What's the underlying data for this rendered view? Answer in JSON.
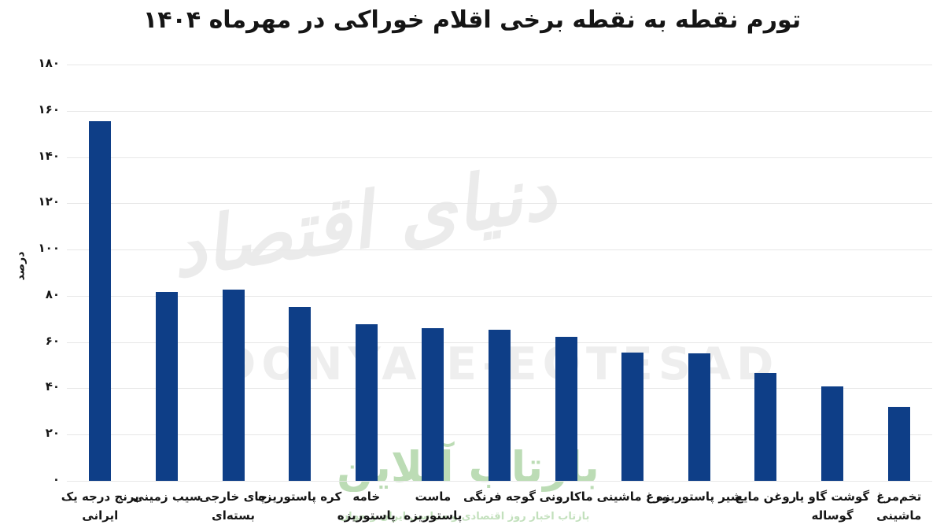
{
  "title": "تورم نقطه به نقطه برخی اقلام خوراکی در مهرماه ۱۴۰۴",
  "colors": {
    "bar": "#0e3e87",
    "gridline": "#e7e7e7",
    "title_text": "#151515",
    "watermark_gray": "#ececec",
    "watermark_green": "#b5d9ae"
  },
  "watermarks": {
    "center_logo_fa": "دنیای اقتصاد",
    "center_logo_en": "DONYA-E-EQTESAD",
    "bottom_logo_fa": "بازتاب آنلاین",
    "bottom_tagline_fa": "بازتاب اخبار روز اقتصادی و سیاسی ایران و جهان"
  },
  "chart_data": {
    "type": "bar",
    "title": "تورم نقطه به نقطه برخی اقلام خوراکی در مهرماه ۱۴۰۴",
    "xlabel": "",
    "ylabel": "درصد",
    "ylim": [
      0,
      180
    ],
    "ytick_step": 20,
    "ytick_labels": [
      "۰",
      "۲۰",
      "۴۰",
      "۶۰",
      "۸۰",
      "۱۰۰",
      "۱۲۰",
      "۱۴۰",
      "۱۶۰",
      "۱۸۰"
    ],
    "grid": "horizontal",
    "legend_position": "none",
    "bar_color": "#0e3e87",
    "categories": [
      "برنج درجه یک ایرانی",
      "سیب زمینی",
      "چای خارجی بسته‌ای",
      "کره پاستوریزه",
      "خامه پاستوریزه",
      "ماست پاستوریزه",
      "گوجه فرنگی",
      "ماکارونی",
      "مرغ ماشینی",
      "شیر پاستوریزه",
      "روغن مایع",
      "گوشت گاو یا گوساله",
      "تخم‌مرغ ماشینی"
    ],
    "category_lines": [
      [
        "برنج درجه یک",
        "ایرانی"
      ],
      [
        "سیب زمینی"
      ],
      [
        "چای خارجی",
        "بسته‌ای"
      ],
      [
        "کره پاستوریزه"
      ],
      [
        "خامه",
        "پاستوریزه"
      ],
      [
        "ماست",
        "پاستوریزه"
      ],
      [
        "گوجه فرنگی"
      ],
      [
        "ماکارونی"
      ],
      [
        "مرغ ماشینی"
      ],
      [
        "شیر پاستوریزه"
      ],
      [
        "روغن مایع"
      ],
      [
        "گوشت گاو یا",
        "گوساله"
      ],
      [
        "تخم‌مرغ",
        "ماشینی"
      ]
    ],
    "values": [
      155.5,
      81.7,
      82.7,
      75.2,
      67.7,
      66.0,
      65.3,
      62.3,
      55.5,
      55.1,
      46.6,
      40.8,
      32.0
    ]
  }
}
